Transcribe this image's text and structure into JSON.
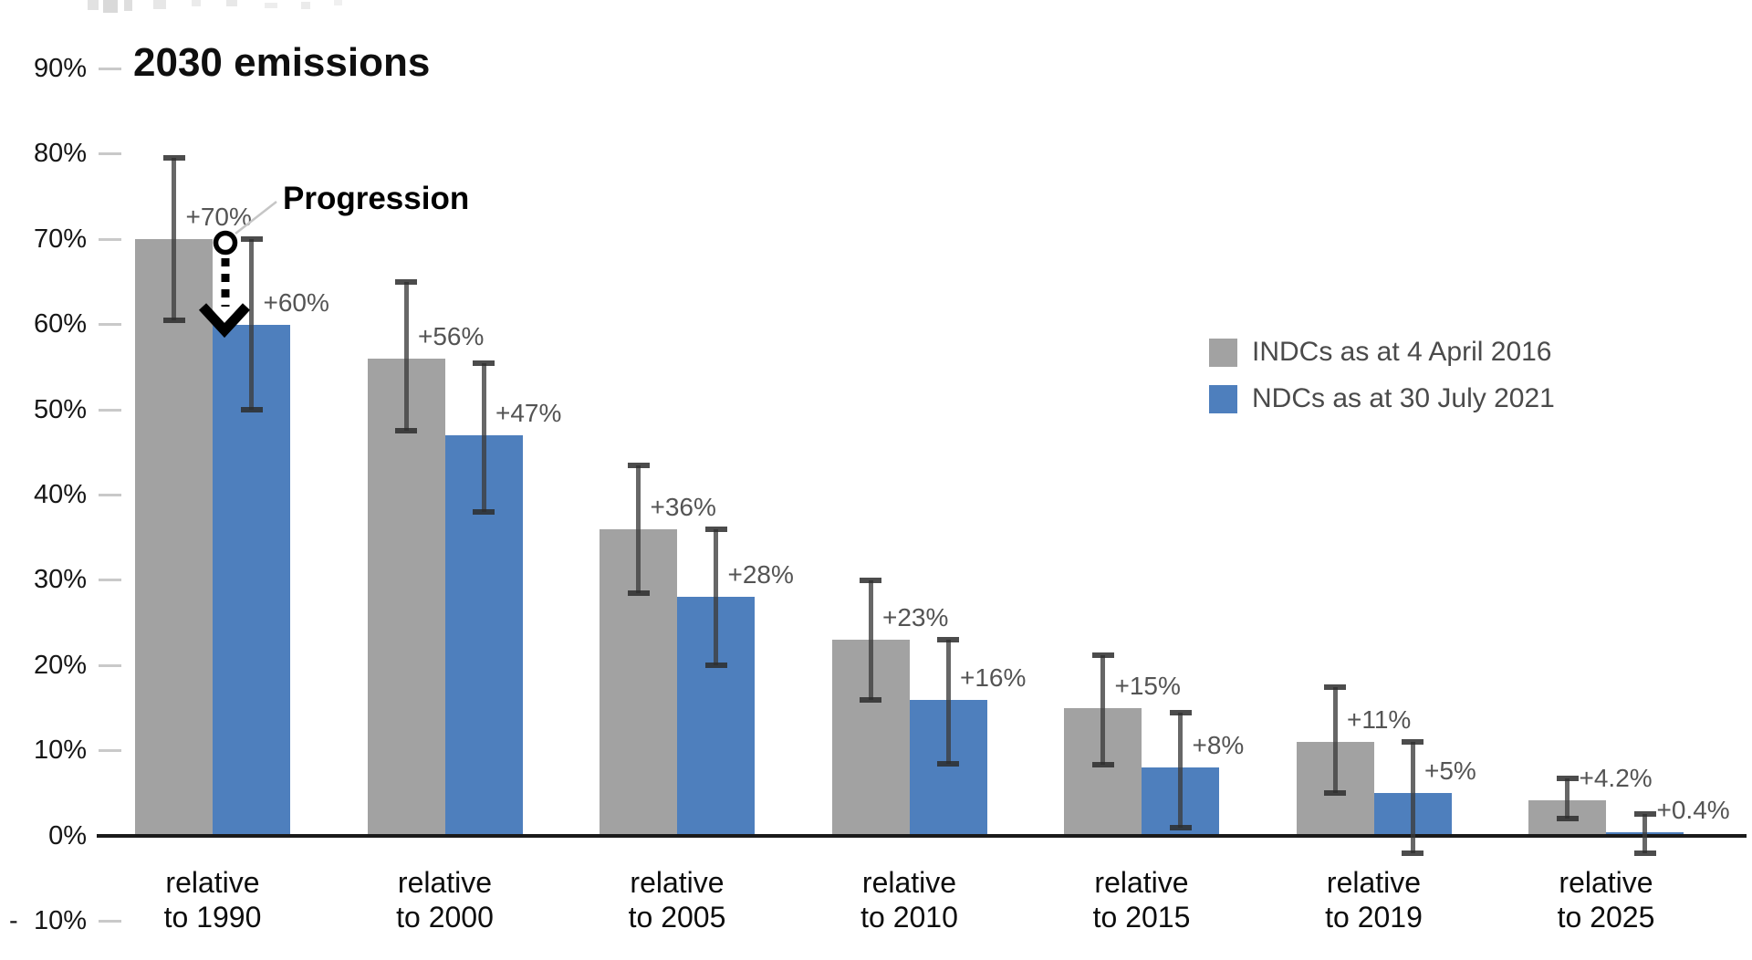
{
  "chart_data": {
    "type": "bar",
    "title": "2030 emissions",
    "xlabel": "",
    "ylabel": "",
    "ylim": [
      -10,
      90
    ],
    "grid": false,
    "legend_position": "center-right",
    "yticks": [
      {
        "v": 90,
        "t": "90%"
      },
      {
        "v": 80,
        "t": "80%"
      },
      {
        "v": 70,
        "t": "70%"
      },
      {
        "v": 60,
        "t": "60%"
      },
      {
        "v": 50,
        "t": "50%"
      },
      {
        "v": 40,
        "t": "40%"
      },
      {
        "v": 30,
        "t": "30%"
      },
      {
        "v": 20,
        "t": "20%"
      },
      {
        "v": 10,
        "t": "10%"
      },
      {
        "v": 0,
        "t": "0%"
      },
      {
        "v": -10,
        "t": "10%",
        "neg": true
      }
    ],
    "categories": [
      {
        "line1": "relative",
        "line2": "to 1990"
      },
      {
        "line1": "relative",
        "line2": "to 2000"
      },
      {
        "line1": "relative",
        "line2": "to 2005"
      },
      {
        "line1": "relative",
        "line2": "to 2010"
      },
      {
        "line1": "relative",
        "line2": "to 2015"
      },
      {
        "line1": "relative",
        "line2": "to 2019"
      },
      {
        "line1": "relative",
        "line2": "to 2025"
      }
    ],
    "series": [
      {
        "key": "indc",
        "name": "INDCs as at 4 April 2016",
        "color": "#a2a2a2",
        "values": [
          70,
          56,
          36,
          23,
          15,
          11,
          4.2
        ],
        "labels": [
          "+70%",
          "+56%",
          "+36%",
          "+23%",
          "+15%",
          "+11%",
          "+4.2%"
        ],
        "error_low": [
          60.5,
          47.5,
          28.5,
          16,
          8.3,
          5,
          2
        ],
        "error_high": [
          79.5,
          65,
          43.5,
          30,
          21.2,
          17.5,
          6.7
        ]
      },
      {
        "key": "ndc",
        "name": "NDCs as at 30 July 2021",
        "color": "#4e7fbd",
        "values": [
          60,
          47,
          28,
          16,
          8,
          5,
          0.4
        ],
        "labels": [
          "+60%",
          "+47%",
          "+28%",
          "+16%",
          "+8%",
          "+5%",
          "+0.4%"
        ],
        "error_low": [
          50,
          38,
          20,
          8.5,
          1,
          -2,
          -2
        ],
        "error_high": [
          70,
          55.5,
          36,
          23,
          14.5,
          11,
          2.6
        ]
      }
    ],
    "annotation": {
      "text": "Progression",
      "category": "relative to 1990",
      "from_value": 70,
      "to_value": 60
    },
    "colors": {
      "error_bar": "#3c3c3c",
      "tick_dash": "#c9c9c9",
      "axis": "#1a1a1a",
      "data_label": "#545454",
      "legend_text": "#4a4a4a"
    }
  }
}
